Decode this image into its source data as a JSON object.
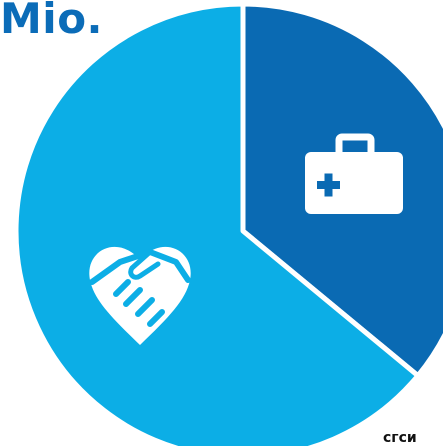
{
  "title": "Mio.",
  "corner_text": "сгси",
  "colors": {
    "title": "#0b6cb8",
    "corner_text": "#111111",
    "background": "#ffffff",
    "slice_border": "#ffffff"
  },
  "chart_data": {
    "type": "pie",
    "title": "",
    "slices": [
      {
        "label": "",
        "value": 36,
        "color": "#0a6ab3",
        "icon": "medical-kit-icon"
      },
      {
        "label": "",
        "value": 64,
        "color": "#0caee6",
        "icon": "handshake-heart-icon"
      }
    ]
  }
}
